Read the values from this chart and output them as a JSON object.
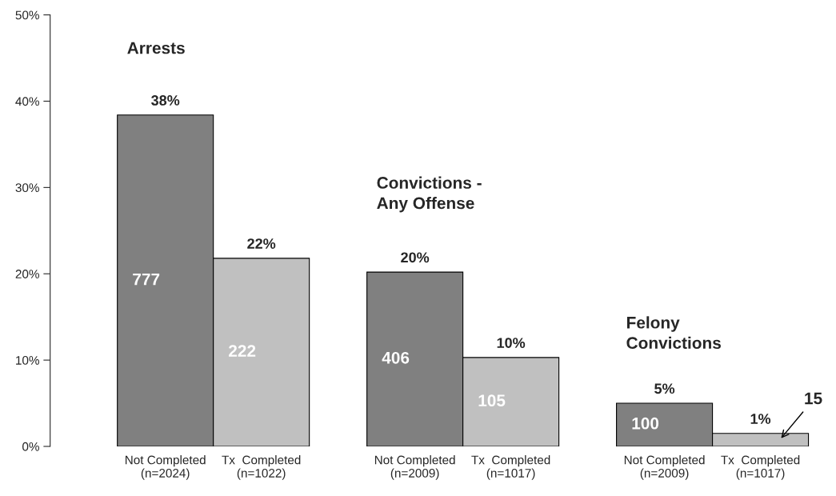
{
  "chart_data": {
    "type": "bar",
    "categories": [
      "Not Completed\n(n=2024)",
      "Tx  Completed\n(n=1022)",
      "Not Completed\n(n=2009)",
      "Tx  Completed\n(n=1017)",
      "Not Completed\n(n=2009)",
      "Tx  Completed\n(n=1017)"
    ],
    "values": [
      38.4,
      21.8,
      20.2,
      10.3,
      5.0,
      1.5
    ],
    "colors": [
      "#808080",
      "#c0c0c0",
      "#808080",
      "#c0c0c0",
      "#808080",
      "#c0c0c0"
    ],
    "value_labels": [
      "38%",
      "22%",
      "20%",
      "10%",
      "5%",
      "1%"
    ],
    "annotations": [
      "777",
      "222",
      "406",
      "105",
      "100",
      "15",
      "Arrests",
      "Convictions -\nAny Offense",
      "Felony\nConvictions"
    ],
    "ylim": [
      0,
      50
    ],
    "yticks": [
      {
        "value": 0,
        "label": "0%"
      },
      {
        "value": 10,
        "label": "10%"
      },
      {
        "value": 20,
        "label": "20%"
      },
      {
        "value": 30,
        "label": "30%"
      },
      {
        "value": 40,
        "label": "40%"
      },
      {
        "value": 50,
        "label": "50%"
      }
    ],
    "grid": false,
    "legend": false
  }
}
